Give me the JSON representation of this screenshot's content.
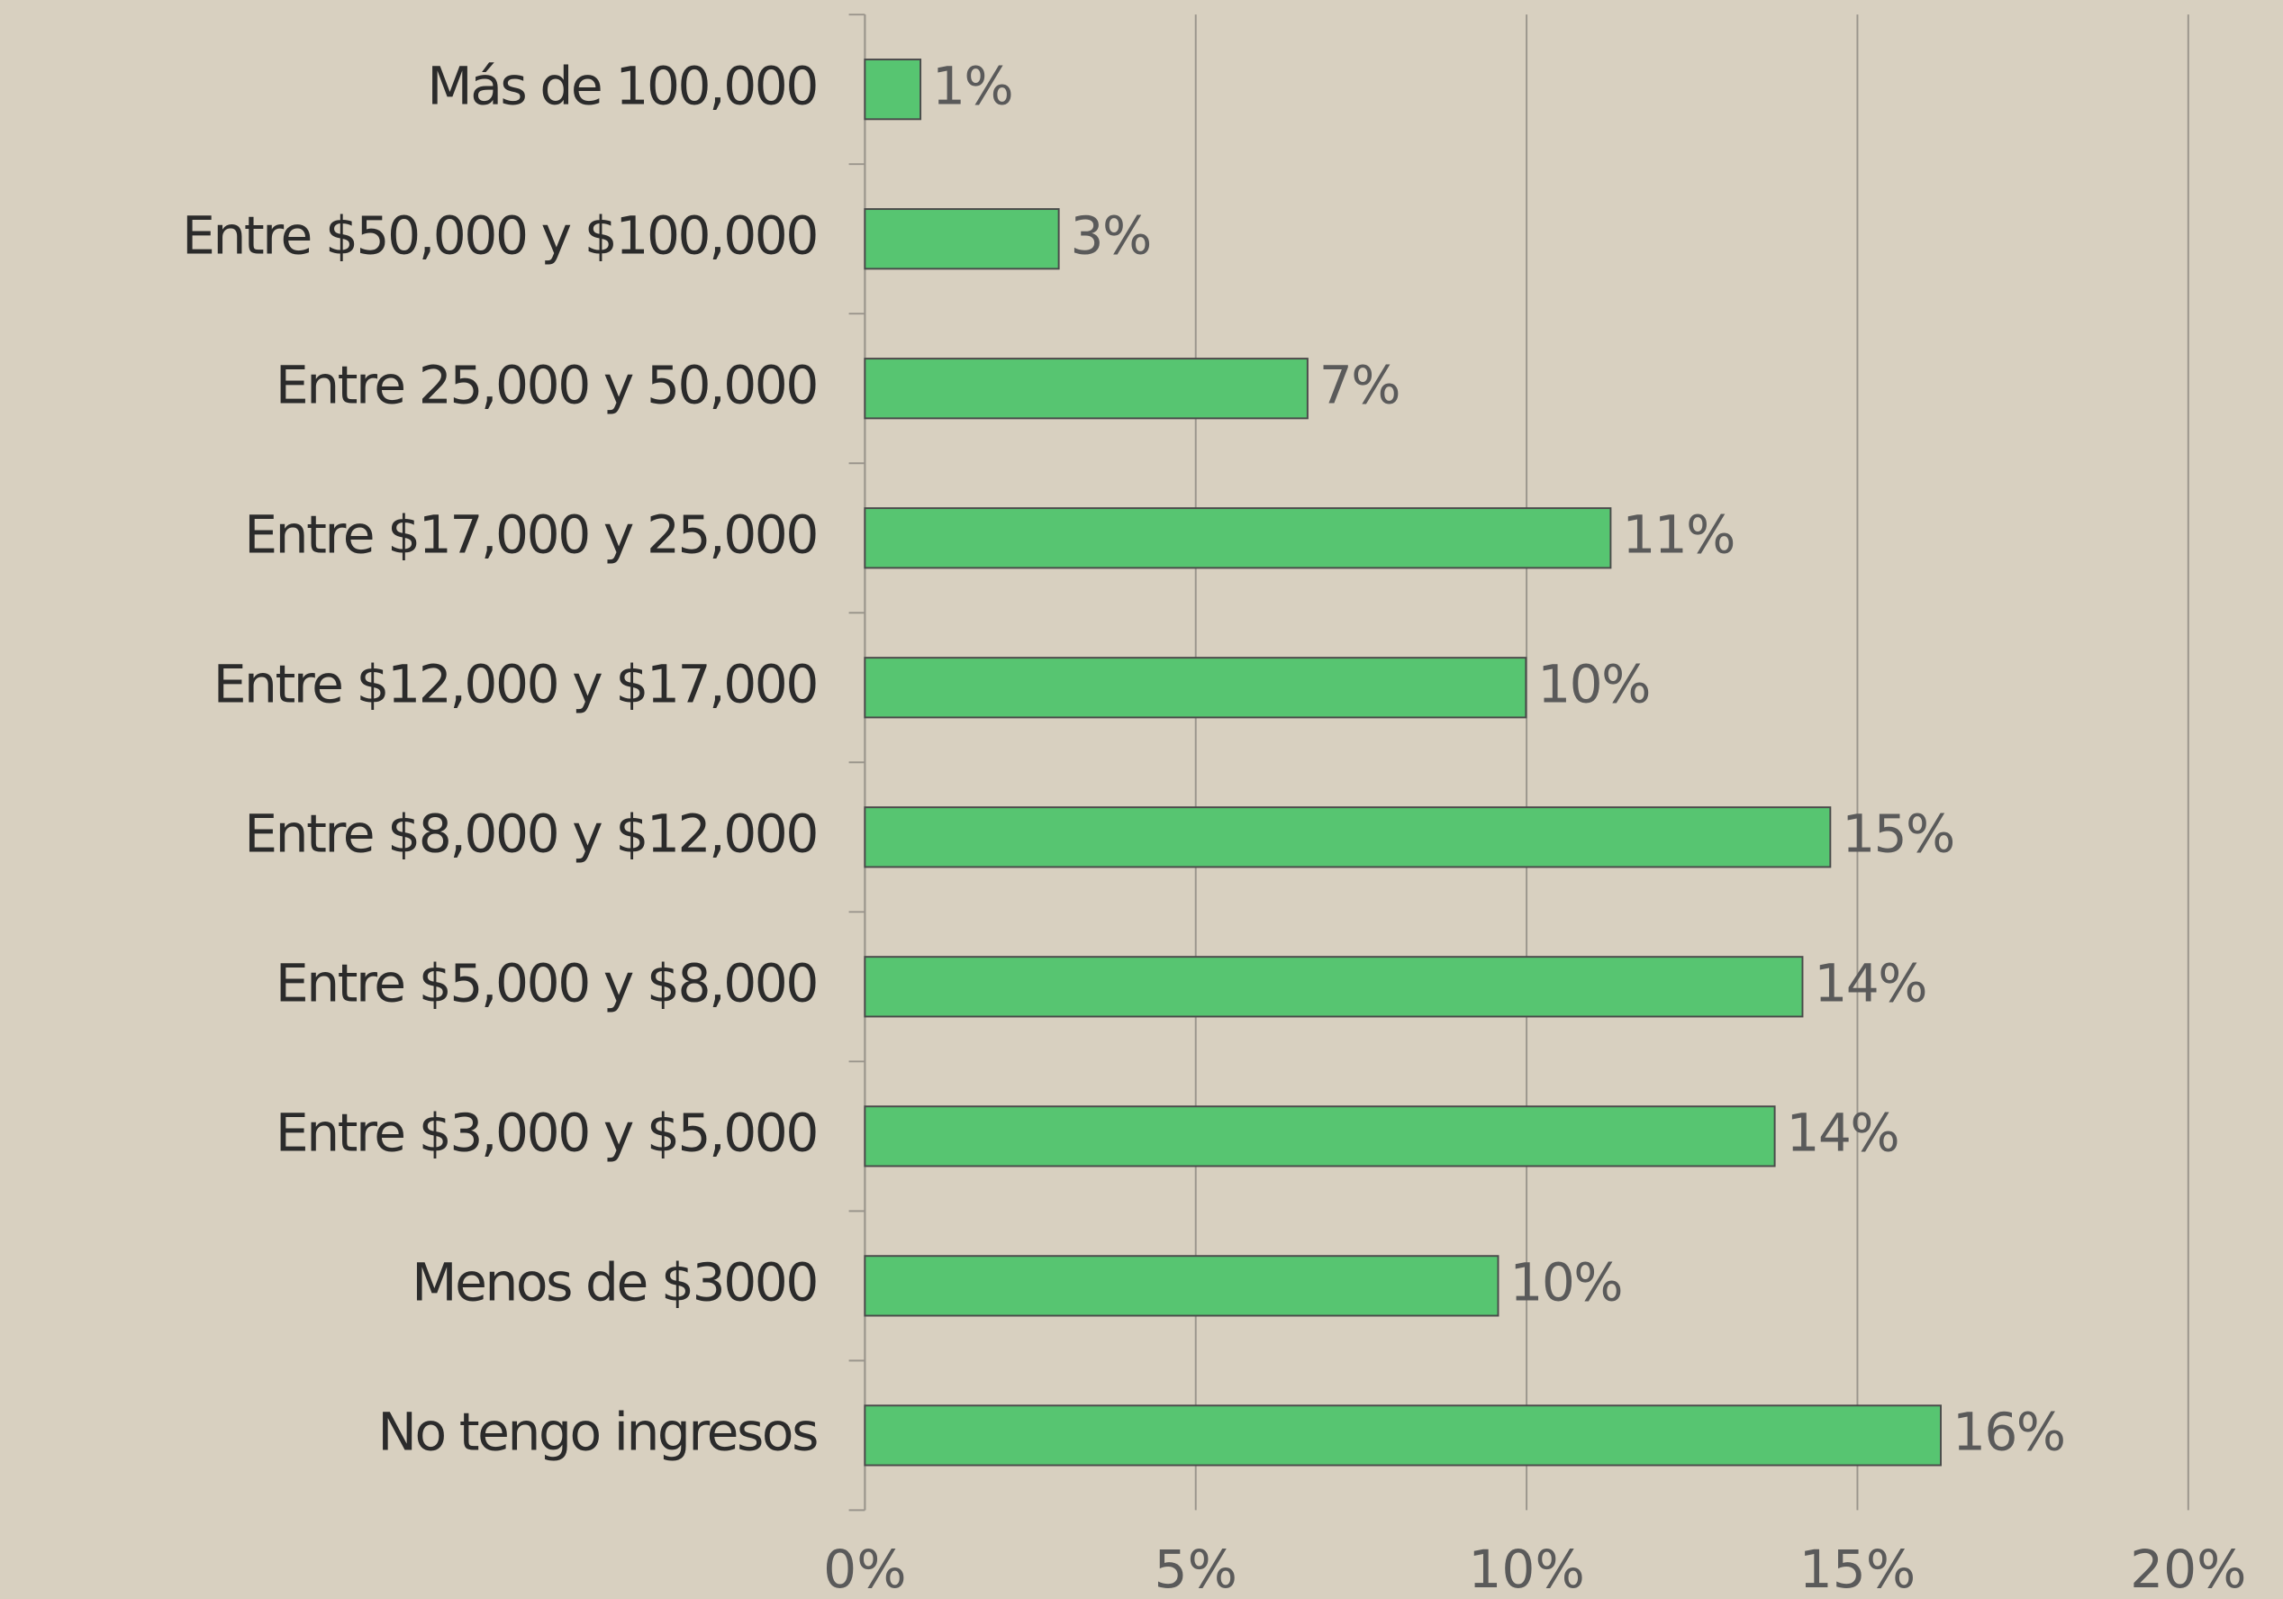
{
  "chart_data": {
    "type": "bar",
    "orientation": "horizontal",
    "categories": [
      "Más de 100,000",
      "Entre $50,000 y $100,000",
      "Entre 25,000 y 50,000",
      "Entre $17,000 y 25,000",
      "Entre $12,000 y $17,000",
      "Entre $8,000 y $12,000",
      "Entre $5,000 y $8,000",
      "Entre $3,000 y $5,000",
      "Menos de $3000",
      "No tengo ingresos"
    ],
    "values": [
      0.84,
      2.93,
      6.69,
      11.27,
      9.99,
      14.59,
      14.17,
      13.75,
      9.57,
      16.26
    ],
    "value_labels": [
      "1%",
      "3%",
      "7%",
      "11%",
      "10%",
      "15%",
      "14%",
      "14%",
      "10%",
      "16%"
    ],
    "color": "#57c571",
    "xlim": [
      0,
      20
    ],
    "xticks": [
      {
        "value": 0,
        "label": "0%"
      },
      {
        "value": 5,
        "label": "5%"
      },
      {
        "value": 10,
        "label": "10%"
      },
      {
        "value": 15,
        "label": "15%"
      },
      {
        "value": 20,
        "label": "20%"
      }
    ],
    "grid": true
  }
}
